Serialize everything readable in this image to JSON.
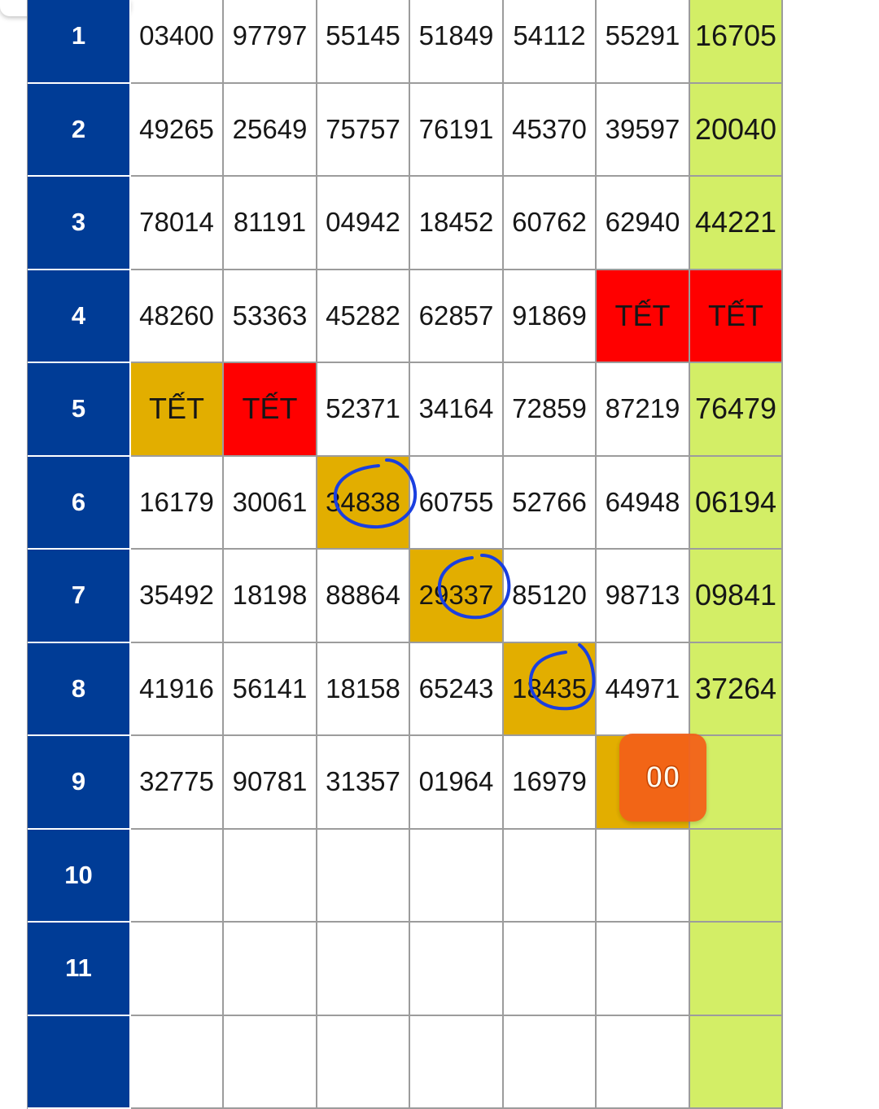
{
  "table": {
    "rows": [
      {
        "label": "1",
        "cells": [
          "03400",
          "97797",
          "55145",
          "51849",
          "54112",
          "55291",
          "16705"
        ]
      },
      {
        "label": "2",
        "cells": [
          "49265",
          "25649",
          "75757",
          "76191",
          "45370",
          "39597",
          "20040"
        ]
      },
      {
        "label": "3",
        "cells": [
          "78014",
          "81191",
          "04942",
          "18452",
          "60762",
          "62940",
          "44221"
        ]
      },
      {
        "label": "4",
        "cells": [
          "48260",
          "53363",
          "45282",
          "62857",
          "91869",
          "TẾT",
          "TẾT"
        ]
      },
      {
        "label": "5",
        "cells": [
          "TẾT",
          "TẾT",
          "52371",
          "34164",
          "72859",
          "87219",
          "76479"
        ]
      },
      {
        "label": "6",
        "cells": [
          "16179",
          "30061",
          "34838",
          "60755",
          "52766",
          "64948",
          "06194"
        ]
      },
      {
        "label": "7",
        "cells": [
          "35492",
          "18198",
          "88864",
          "29337",
          "85120",
          "98713",
          "09841"
        ]
      },
      {
        "label": "8",
        "cells": [
          "41916",
          "56141",
          "18158",
          "65243",
          "18435",
          "44971",
          "37264"
        ]
      },
      {
        "label": "9",
        "cells": [
          "32775",
          "90781",
          "31357",
          "01964",
          "16979",
          "",
          ""
        ]
      },
      {
        "label": "10",
        "cells": [
          "",
          "",
          "",
          "",
          "",
          "",
          ""
        ]
      },
      {
        "label": "11",
        "cells": [
          "",
          "",
          "",
          "",
          "",
          "",
          ""
        ]
      },
      {
        "label": "",
        "cells": [
          "",
          "",
          "",
          "",
          "",
          "",
          ""
        ]
      }
    ],
    "highlights": {
      "gold": [
        "5-0",
        "6-2",
        "7-3",
        "8-4",
        "9-5"
      ],
      "red": [
        "4-5",
        "4-6",
        "5-1"
      ]
    },
    "circled": [
      "6-2",
      "7-3",
      "8-4"
    ]
  },
  "badge": {
    "text": "00"
  },
  "colors": {
    "row_header": "#003c96",
    "last_column": "#d3ee66",
    "gold": "#e2ae00",
    "red": "#ff0000",
    "badge": "#f46018",
    "circle": "#1a3fe0"
  }
}
